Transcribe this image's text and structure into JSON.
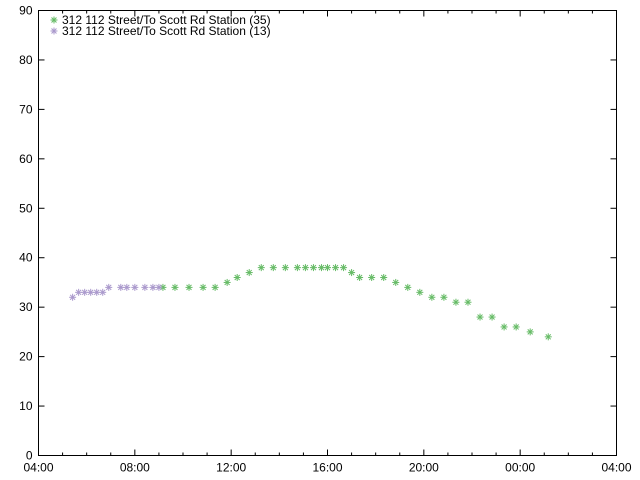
{
  "chart_data": {
    "type": "scatter",
    "title": "",
    "xlabel": "",
    "ylabel": "",
    "xlim": [
      "04:00",
      "04:00+1"
    ],
    "ylim": [
      0,
      90
    ],
    "grid": false,
    "legend_position": "top-left",
    "x_ticks": [
      "04:00",
      "08:00",
      "12:00",
      "16:00",
      "20:00",
      "00:00",
      "04:00"
    ],
    "y_ticks": [
      0,
      10,
      20,
      30,
      40,
      50,
      60,
      70,
      80,
      90
    ],
    "series": [
      {
        "name": "312 112 Street/To Scott Rd Station (35)",
        "color": "#66bb66",
        "marker": "asterisk",
        "points": [
          [
            "09:10",
            34
          ],
          [
            "09:40",
            34
          ],
          [
            "10:15",
            34
          ],
          [
            "10:50",
            34
          ],
          [
            "11:20",
            34
          ],
          [
            "11:50",
            35
          ],
          [
            "12:15",
            36
          ],
          [
            "12:45",
            37
          ],
          [
            "13:15",
            38
          ],
          [
            "13:45",
            38
          ],
          [
            "14:15",
            38
          ],
          [
            "14:45",
            38
          ],
          [
            "15:05",
            38
          ],
          [
            "15:25",
            38
          ],
          [
            "15:45",
            38
          ],
          [
            "16:00",
            38
          ],
          [
            "16:20",
            38
          ],
          [
            "16:40",
            38
          ],
          [
            "17:00",
            37
          ],
          [
            "17:20",
            36
          ],
          [
            "17:50",
            36
          ],
          [
            "18:20",
            36
          ],
          [
            "18:50",
            35
          ],
          [
            "19:20",
            34
          ],
          [
            "19:50",
            33
          ],
          [
            "20:20",
            32
          ],
          [
            "20:50",
            32
          ],
          [
            "21:20",
            31
          ],
          [
            "21:50",
            31
          ],
          [
            "22:20",
            28
          ],
          [
            "22:50",
            28
          ],
          [
            "23:20",
            26
          ],
          [
            "23:50",
            26
          ],
          [
            "00:25",
            25
          ],
          [
            "01:10",
            24
          ]
        ]
      },
      {
        "name": "312 112 Street/To Scott Rd Station (13)",
        "color": "#aa99cc",
        "marker": "asterisk",
        "points": [
          [
            "05:25",
            32
          ],
          [
            "05:40",
            33
          ],
          [
            "05:55",
            33
          ],
          [
            "06:10",
            33
          ],
          [
            "06:25",
            33
          ],
          [
            "06:40",
            33
          ],
          [
            "06:55",
            34
          ],
          [
            "07:25",
            34
          ],
          [
            "07:40",
            34
          ],
          [
            "08:00",
            34
          ],
          [
            "08:25",
            34
          ],
          [
            "08:45",
            34
          ],
          [
            "09:00",
            34
          ]
        ]
      }
    ]
  }
}
